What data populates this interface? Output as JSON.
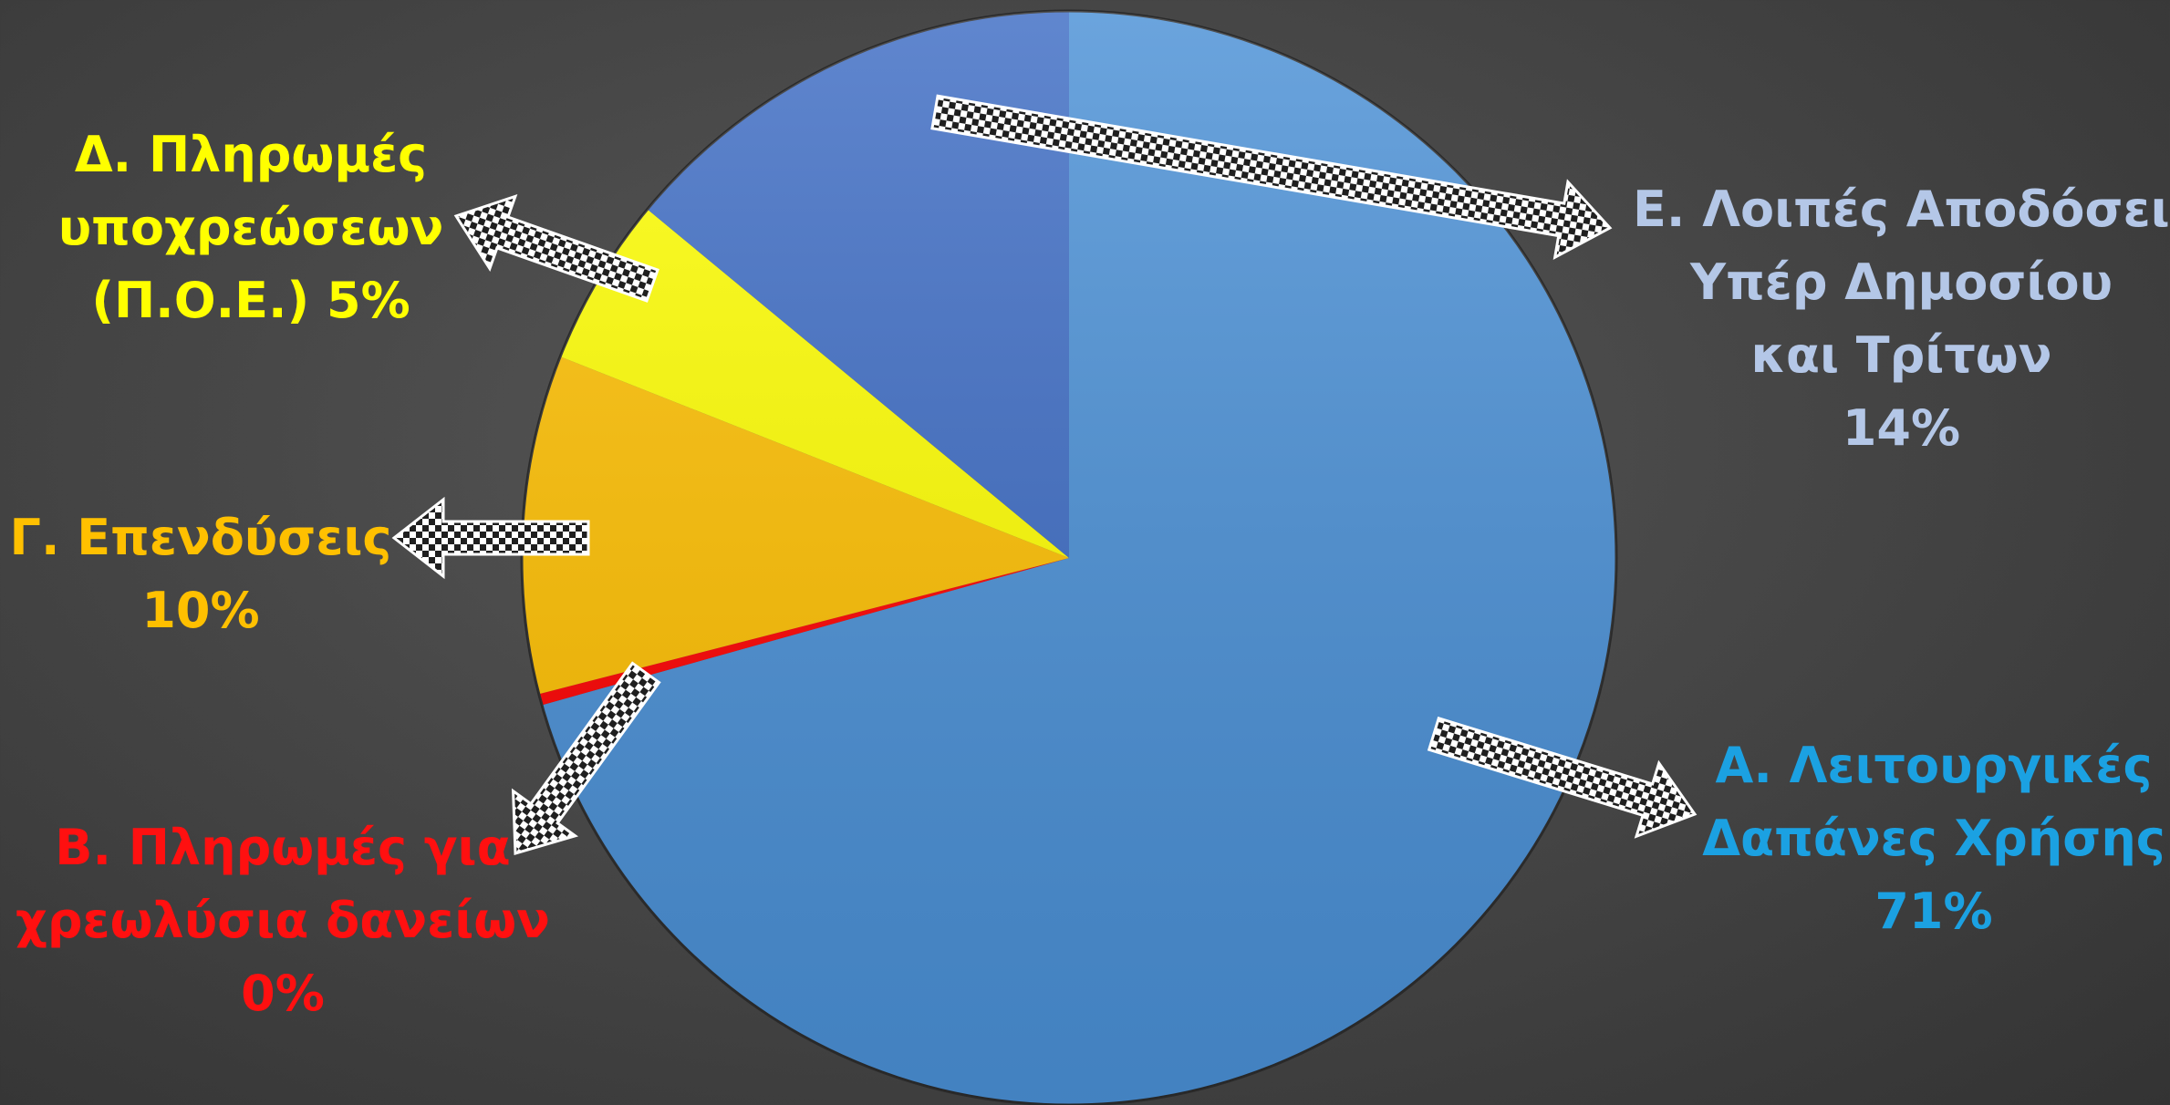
{
  "chart_data": {
    "type": "pie",
    "title": "",
    "legend": "none",
    "slices": [
      {
        "name": "Α. Λειτουργικές Δαπάνες Χρήσης",
        "value": 71,
        "color": "#4A90D6",
        "label_lines": [
          "Α. Λειτουργικές",
          "Δαπάνες Χρήσης",
          "71%"
        ],
        "label_color": "#1BA1E2"
      },
      {
        "name": "Β. Πληρωμές για χρεωλύσια δανείων",
        "value": 0,
        "color": "#FF0000",
        "label_lines": [
          "Β. Πληρωμές για",
          "χρεωλύσια δανείων",
          "0%"
        ],
        "label_color": "#FF1010"
      },
      {
        "name": "Γ. Επενδύσεις",
        "value": 10,
        "color": "#FFC000",
        "label_lines": [
          "Γ. Επενδύσεις",
          "10%"
        ],
        "label_color": "#FFC000"
      },
      {
        "name": "Δ. Πληρωμές υποχρεώσεων (Π.Ο.Ε.)",
        "value": 5,
        "color": "#FFFF00",
        "label_lines": [
          "Δ. Πληρωμές",
          "υποχρεώσεων",
          "(Π.Ο.Ε.)  5%"
        ],
        "label_color": "#FFFF00"
      },
      {
        "name": "Ε. Λοιπές Αποδόσεις Υπέρ Δημοσίου και Τρίτων",
        "value": 14,
        "color": "#3D6CC4",
        "label_lines": [
          "Ε. Λοιπές Αποδόσεις",
          "Υπέρ Δημοσίου",
          "και Τρίτων",
          "14%"
        ],
        "label_color": "#B4C7E7"
      }
    ]
  }
}
